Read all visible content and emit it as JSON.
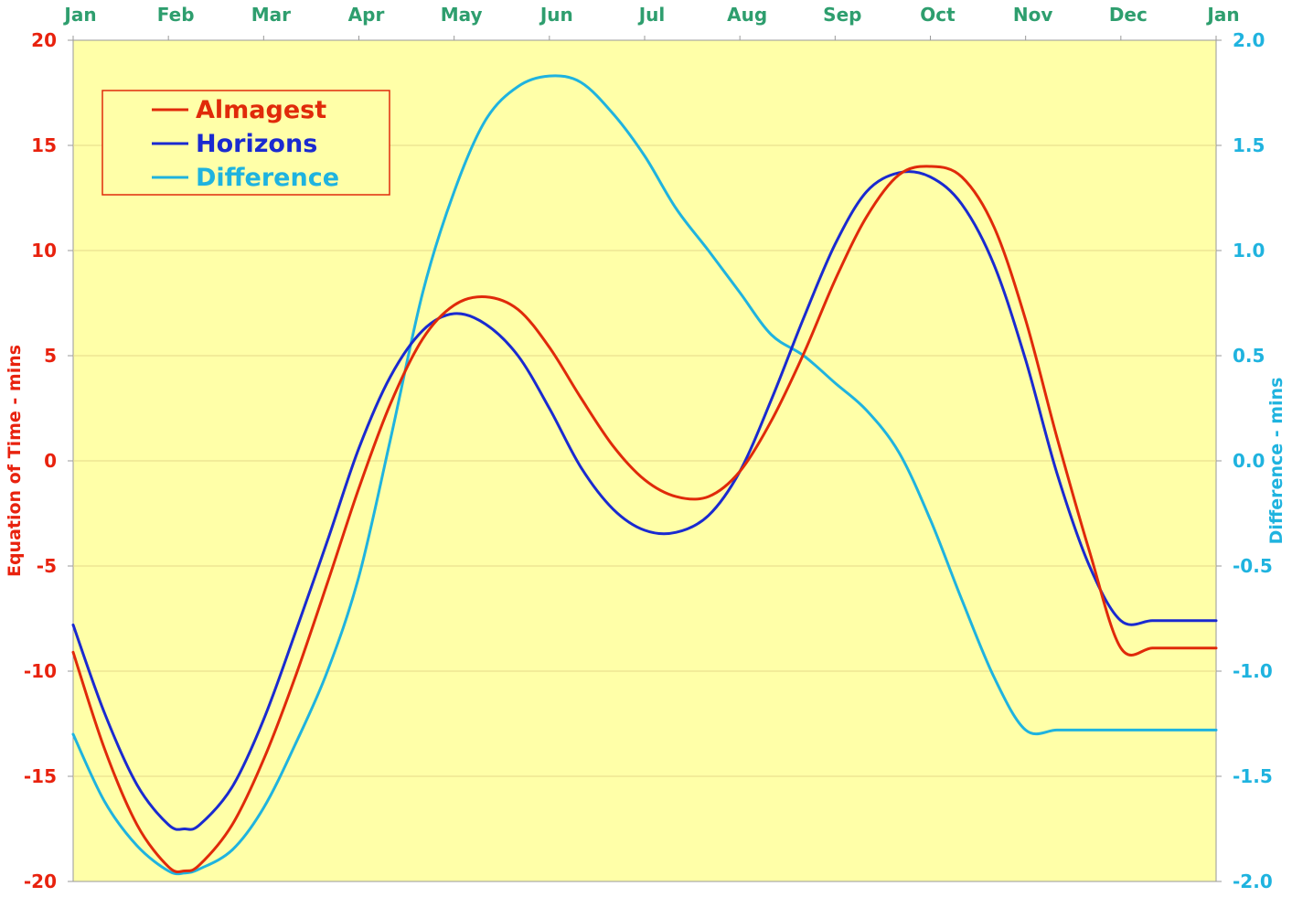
{
  "chart_data": {
    "type": "line",
    "x_axis": {
      "ticks": [
        "Jan",
        "Feb",
        "Mar",
        "Apr",
        "May",
        "Jun",
        "Jul",
        "Aug",
        "Sep",
        "Oct",
        "Nov",
        "Dec",
        "Jan"
      ],
      "range": [
        0,
        12
      ],
      "position": "top"
    },
    "y_left": {
      "label": "Equation of Time - mins",
      "range": [
        -20,
        20
      ],
      "ticks": [
        "20",
        "15",
        "10",
        "5",
        "0",
        "-5",
        "-10",
        "-15",
        "-20"
      ],
      "color": "#e8220e"
    },
    "y_right": {
      "label": "Difference - mins",
      "range": [
        -2.0,
        2.0
      ],
      "ticks": [
        "2.0",
        "1.5",
        "1.0",
        "0.5",
        "0.0",
        "-0.5",
        "-1.0",
        "-1.5",
        "-2.0"
      ],
      "color": "#1fb3df"
    },
    "grid": "horizontal",
    "plot_background": "#ffffa8",
    "legend": {
      "placement": "top-left"
    },
    "series": [
      {
        "name": "Almagest",
        "axis": "left",
        "color": "#e02a0a",
        "x": [
          0,
          0.33,
          0.67,
          1.0,
          1.17,
          1.33,
          1.67,
          2.0,
          2.33,
          2.67,
          3.0,
          3.33,
          3.67,
          4.0,
          4.33,
          4.67,
          5.0,
          5.33,
          5.67,
          6.0,
          6.33,
          6.67,
          7.0,
          7.33,
          7.67,
          8.0,
          8.33,
          8.67,
          9.0,
          9.33,
          9.67,
          10.0,
          10.33,
          10.67,
          11.0,
          11.33,
          11.67,
          12.0
        ],
        "y": [
          -9.1,
          -13.7,
          -17.3,
          -19.3,
          -19.5,
          -19.2,
          -17.3,
          -14.2,
          -10.3,
          -5.8,
          -1.3,
          2.7,
          5.8,
          7.4,
          7.8,
          7.2,
          5.4,
          3.0,
          0.7,
          -0.9,
          -1.7,
          -1.7,
          -0.5,
          1.9,
          5.1,
          8.6,
          11.6,
          13.6,
          14.0,
          13.5,
          11.1,
          6.7,
          1.1,
          -4.3,
          -8.9,
          -8.9,
          -8.9,
          -8.9
        ]
      },
      {
        "name": "Horizons",
        "axis": "left",
        "color": "#1a2ad0",
        "x": [
          0,
          0.33,
          0.67,
          1.0,
          1.17,
          1.33,
          1.67,
          2.0,
          2.33,
          2.67,
          3.0,
          3.33,
          3.67,
          4.0,
          4.33,
          4.67,
          5.0,
          5.33,
          5.67,
          6.0,
          6.33,
          6.67,
          7.0,
          7.33,
          7.67,
          8.0,
          8.33,
          8.67,
          9.0,
          9.33,
          9.67,
          10.0,
          10.33,
          10.67,
          11.0,
          11.33,
          11.67,
          12.0
        ],
        "y": [
          -7.8,
          -12.0,
          -15.4,
          -17.3,
          -17.5,
          -17.3,
          -15.5,
          -12.3,
          -8.2,
          -3.8,
          0.6,
          4.0,
          6.2,
          7.0,
          6.5,
          5.0,
          2.5,
          -0.3,
          -2.3,
          -3.3,
          -3.4,
          -2.6,
          -0.5,
          2.9,
          6.8,
          10.3,
          12.8,
          13.7,
          13.5,
          12.2,
          9.3,
          4.8,
          -0.6,
          -5.0,
          -7.6,
          -7.6,
          -7.6,
          -7.6
        ]
      },
      {
        "name": "Difference",
        "axis": "right",
        "color": "#1fb3df",
        "x": [
          0,
          0.33,
          0.67,
          1.0,
          1.17,
          1.33,
          1.67,
          2.0,
          2.33,
          2.67,
          3.0,
          3.33,
          3.67,
          4.0,
          4.33,
          4.67,
          5.0,
          5.33,
          5.67,
          6.0,
          6.33,
          6.67,
          7.0,
          7.33,
          7.67,
          8.0,
          8.33,
          8.67,
          9.0,
          9.33,
          9.67,
          10.0,
          10.33,
          10.67,
          11.0,
          11.33,
          11.67,
          12.0
        ],
        "y": [
          -1.3,
          -1.62,
          -1.83,
          -1.95,
          -1.96,
          -1.94,
          -1.85,
          -1.65,
          -1.35,
          -1.0,
          -0.55,
          0.1,
          0.8,
          1.28,
          1.62,
          1.78,
          1.83,
          1.8,
          1.65,
          1.45,
          1.2,
          1.0,
          0.8,
          0.6,
          0.5,
          0.37,
          0.24,
          0.04,
          -0.28,
          -0.66,
          -1.03,
          -1.28,
          -1.28,
          -1.28,
          -1.28,
          -1.28,
          -1.28,
          -1.28
        ]
      }
    ]
  }
}
